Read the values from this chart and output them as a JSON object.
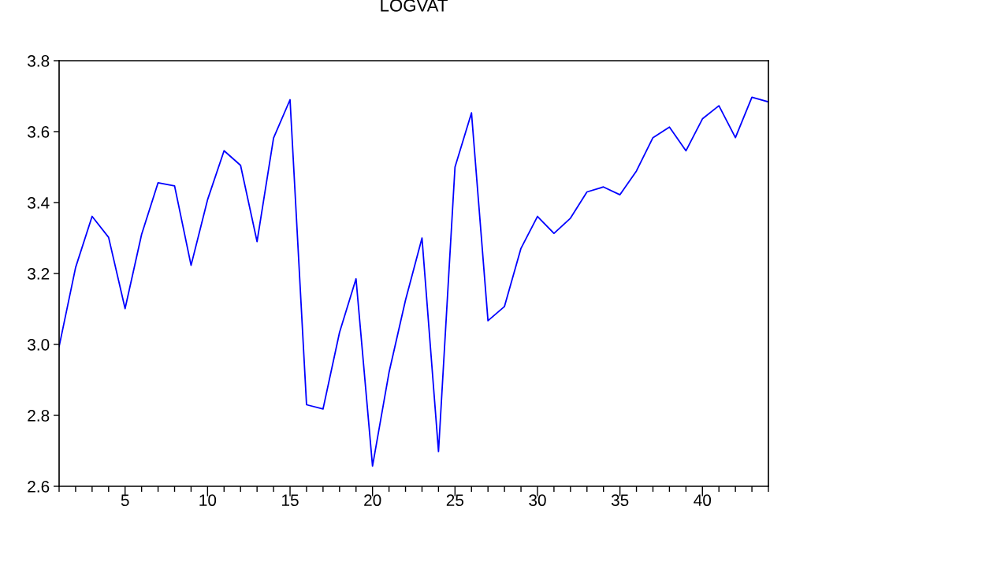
{
  "chart_data": {
    "type": "line",
    "title": "LOGVAT",
    "x": [
      1,
      2,
      3,
      4,
      5,
      6,
      7,
      8,
      9,
      10,
      11,
      12,
      13,
      14,
      15,
      16,
      17,
      18,
      19,
      20,
      21,
      22,
      23,
      24,
      25,
      26,
      27,
      28,
      29,
      30,
      31,
      32,
      33,
      34,
      35,
      36,
      37,
      38,
      39,
      40,
      41,
      42,
      43,
      44
    ],
    "series": [
      {
        "color": "#0000ff",
        "values": [
          2.994,
          3.217,
          3.361,
          3.302,
          3.101,
          3.31,
          3.456,
          3.447,
          3.223,
          3.408,
          3.546,
          3.505,
          3.29,
          3.582,
          3.69,
          2.83,
          2.818,
          3.034,
          3.185,
          2.657,
          2.921,
          3.125,
          3.3,
          2.698,
          3.5,
          3.653,
          3.067,
          3.107,
          3.271,
          3.361,
          3.313,
          3.356,
          3.43,
          3.444,
          3.422,
          3.489,
          3.583,
          3.613,
          3.546,
          3.636,
          3.673,
          3.583,
          3.697,
          3.684
        ]
      }
    ],
    "xlim": [
      1,
      44
    ],
    "xticks": [
      {
        "value": 1,
        "label": null
      },
      {
        "value": 2,
        "label": null
      },
      {
        "value": 3,
        "label": null
      },
      {
        "value": 4,
        "label": null
      },
      5,
      {
        "value": 6,
        "label": null
      },
      {
        "value": 7,
        "label": null
      },
      {
        "value": 8,
        "label": null
      },
      {
        "value": 9,
        "label": null
      },
      10,
      {
        "value": 11,
        "label": null
      },
      {
        "value": 12,
        "label": null
      },
      {
        "value": 13,
        "label": null
      },
      {
        "value": 14,
        "label": null
      },
      15,
      {
        "value": 16,
        "label": null
      },
      {
        "value": 17,
        "label": null
      },
      {
        "value": 18,
        "label": null
      },
      {
        "value": 19,
        "label": null
      },
      20,
      {
        "value": 21,
        "label": null
      },
      {
        "value": 22,
        "label": null
      },
      {
        "value": 23,
        "label": null
      },
      {
        "value": 24,
        "label": null
      },
      25,
      {
        "value": 26,
        "label": null
      },
      {
        "value": 27,
        "label": null
      },
      {
        "value": 28,
        "label": null
      },
      {
        "value": 29,
        "label": null
      },
      30,
      {
        "value": 31,
        "label": null
      },
      {
        "value": 32,
        "label": null
      },
      {
        "value": 33,
        "label": null
      },
      {
        "value": 34,
        "label": null
      },
      35,
      {
        "value": 36,
        "label": null
      },
      {
        "value": 37,
        "label": null
      },
      {
        "value": 38,
        "label": null
      },
      {
        "value": 39,
        "label": null
      },
      40,
      {
        "value": 41,
        "label": null
      },
      {
        "value": 42,
        "label": null
      },
      {
        "value": 43,
        "label": null
      },
      {
        "value": 44,
        "label": null
      }
    ],
    "ylim": [
      2.6,
      3.8
    ],
    "yticks": [
      {
        "value": 2.6,
        "label": "2.6"
      },
      {
        "value": 2.8,
        "label": "2.8"
      },
      {
        "value": 3.0,
        "label": "3.0"
      },
      {
        "value": 3.2,
        "label": "3.2"
      },
      {
        "value": 3.4,
        "label": "3.4"
      },
      {
        "value": 3.6,
        "label": "3.6"
      },
      {
        "value": 3.8,
        "label": "3.8"
      }
    ],
    "grid": false,
    "legend": false,
    "marker": "none",
    "line_style": "solid"
  }
}
